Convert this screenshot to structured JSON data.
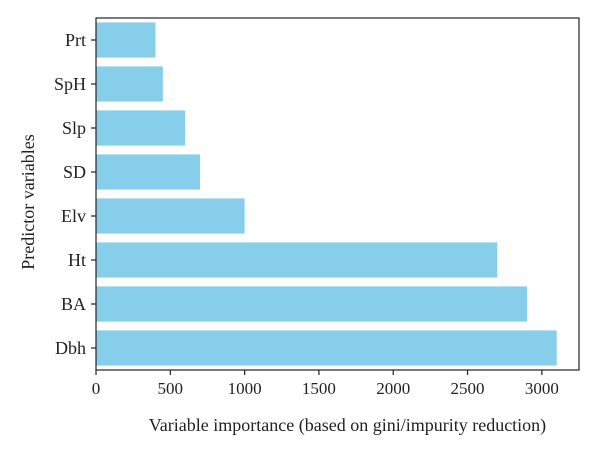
{
  "chart_data": {
    "type": "bar",
    "orientation": "horizontal",
    "categories": [
      "Prt",
      "SpH",
      "Slp",
      "SD",
      "Elv",
      "Ht",
      "BA",
      "Dbh"
    ],
    "values": [
      400,
      450,
      600,
      700,
      1000,
      2700,
      2900,
      3100
    ],
    "xlabel": "Variable importance (based on gini/impurity reduction)",
    "ylabel": "Predictor variables",
    "xlim": [
      0,
      3250
    ],
    "xticks": [
      0,
      500,
      1000,
      1500,
      2000,
      2500,
      3000
    ],
    "grid": false,
    "legend": "none",
    "bar_color": "#87ceeb",
    "axis_color": "#222222"
  }
}
